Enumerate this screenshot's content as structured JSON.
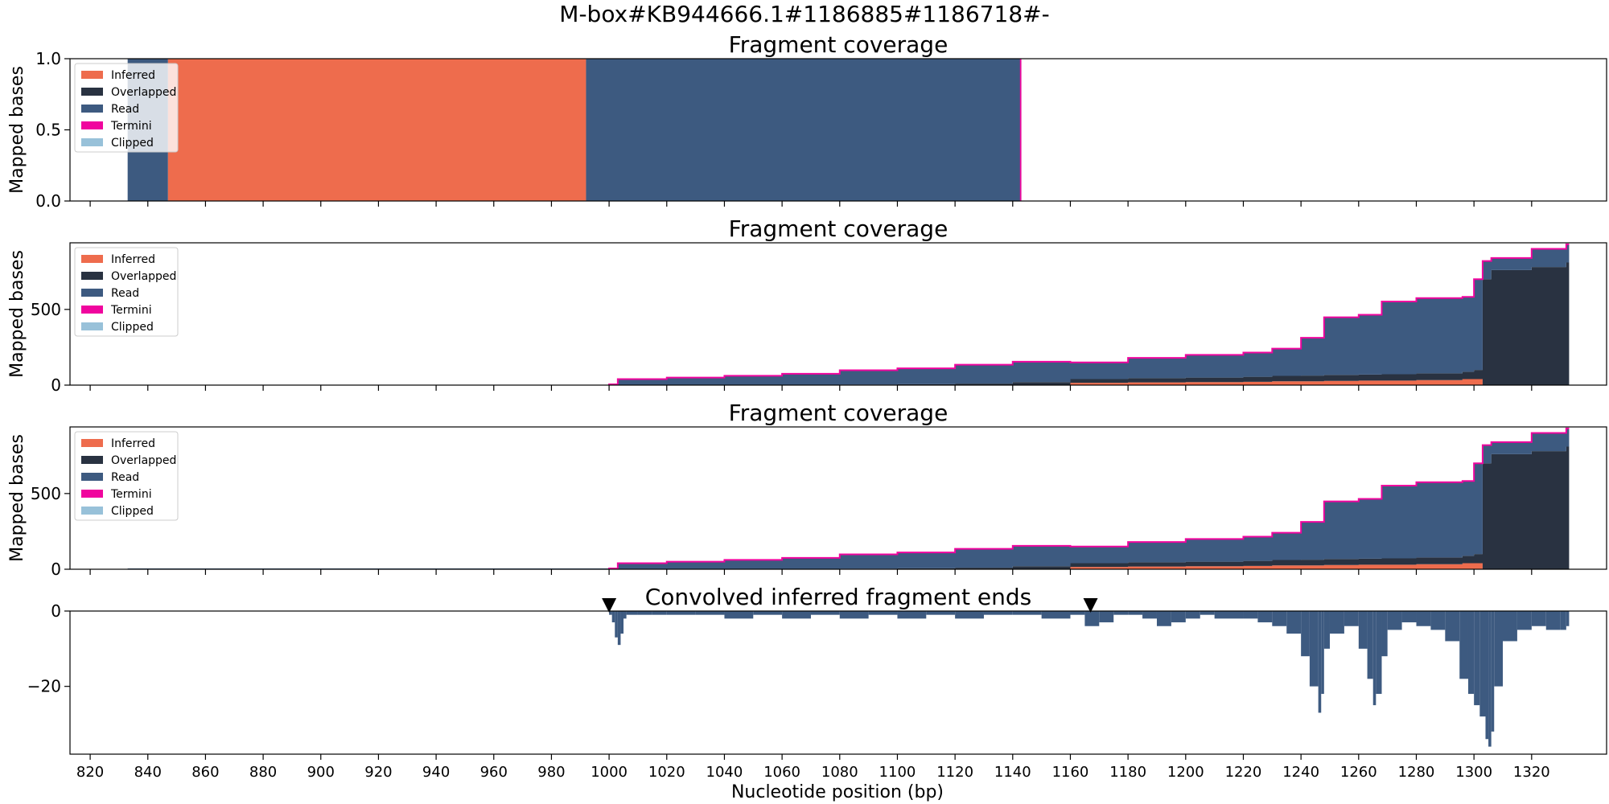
{
  "figure": {
    "suptitle": "M-box#KB944666.1#1186885#1186718#-"
  },
  "colors": {
    "inferred": "#ee6c4d",
    "overlapped": "#293241",
    "read": "#3d5a80",
    "termini": "#f0059e",
    "clipped": "#98c1d9"
  },
  "legend_entries": [
    "Inferred",
    "Overlapped",
    "Read",
    "Termini",
    "Clipped"
  ],
  "x_axis": {
    "label": "Nucleotide position (bp)",
    "range": [
      813,
      1346
    ],
    "ticks": [
      820,
      840,
      860,
      880,
      900,
      920,
      940,
      960,
      980,
      1000,
      1020,
      1040,
      1060,
      1080,
      1100,
      1120,
      1140,
      1160,
      1180,
      1200,
      1220,
      1240,
      1260,
      1280,
      1300,
      1320
    ]
  },
  "chart_data": [
    {
      "type": "area",
      "title": "Fragment coverage",
      "ylabel": "Mapped bases",
      "ylim": [
        0,
        1.0
      ],
      "yticks": [
        0.0,
        0.5,
        1.0
      ],
      "ytick_labels": [
        "0.0",
        "0.5",
        "1.0"
      ],
      "legend": "top-left",
      "segments": [
        {
          "series": "Read",
          "x0": 833,
          "x1": 847,
          "y": 1.0
        },
        {
          "series": "Inferred",
          "x0": 847,
          "x1": 992,
          "y": 1.0
        },
        {
          "series": "Read",
          "x0": 992,
          "x1": 1143,
          "y": 1.0
        },
        {
          "series": "Termini",
          "x0": 1142.5,
          "x1": 1143,
          "y": 1.0
        }
      ]
    },
    {
      "type": "area",
      "title": "Fragment coverage",
      "ylabel": "Mapped bases",
      "ylim": [
        0,
        940
      ],
      "yticks": [
        0,
        500
      ],
      "ytick_labels": [
        "0",
        "500"
      ],
      "legend": "top-left",
      "x": [
        1000,
        1003,
        1020,
        1040,
        1060,
        1080,
        1100,
        1120,
        1140,
        1160,
        1180,
        1200,
        1220,
        1230,
        1240,
        1248,
        1260,
        1268,
        1280,
        1296,
        1300,
        1303,
        1306,
        1320,
        1332
      ],
      "series": [
        {
          "name": "Inferred",
          "values": [
            0,
            0,
            0,
            0,
            0,
            0,
            0,
            0,
            0,
            15,
            18,
            20,
            22,
            25,
            25,
            28,
            30,
            30,
            33,
            40,
            40,
            0,
            0,
            0,
            0
          ]
        },
        {
          "name": "Overlapped",
          "values": [
            0,
            0,
            0,
            0,
            0,
            3,
            6,
            10,
            20,
            25,
            28,
            30,
            33,
            36,
            38,
            40,
            40,
            42,
            45,
            48,
            60,
            700,
            760,
            780,
            810
          ]
        },
        {
          "name": "Read",
          "values": [
            5,
            40,
            50,
            62,
            75,
            95,
            105,
            125,
            135,
            110,
            134,
            150,
            160,
            180,
            250,
            380,
            395,
            480,
            497,
            495,
            600,
            120,
            80,
            120,
            120
          ]
        }
      ],
      "termini_outline": true,
      "termini_start": 1000
    },
    {
      "type": "area",
      "title": "Fragment coverage",
      "ylabel": "Mapped bases",
      "ylim": [
        0,
        940
      ],
      "yticks": [
        0,
        500
      ],
      "ytick_labels": [
        "0",
        "500"
      ],
      "legend": "top-left",
      "x": [
        833,
        840,
        900,
        960,
        999,
        1000,
        1003,
        1020,
        1040,
        1060,
        1080,
        1100,
        1120,
        1140,
        1160,
        1180,
        1200,
        1220,
        1230,
        1240,
        1248,
        1260,
        1268,
        1280,
        1296,
        1300,
        1303,
        1306,
        1320,
        1332
      ],
      "series": [
        {
          "name": "Inferred",
          "values": [
            0,
            0,
            0,
            0,
            0,
            0,
            0,
            0,
            0,
            0,
            0,
            0,
            0,
            0,
            15,
            18,
            20,
            22,
            25,
            25,
            28,
            30,
            30,
            33,
            40,
            40,
            0,
            0,
            0,
            0
          ]
        },
        {
          "name": "Overlapped",
          "values": [
            0,
            0,
            0,
            0,
            0,
            0,
            0,
            0,
            0,
            0,
            3,
            6,
            10,
            20,
            25,
            28,
            30,
            33,
            36,
            38,
            40,
            40,
            42,
            45,
            48,
            60,
            700,
            760,
            780,
            810
          ]
        },
        {
          "name": "Read",
          "values": [
            5,
            5,
            5,
            5,
            5,
            5,
            40,
            50,
            62,
            75,
            95,
            105,
            125,
            135,
            110,
            134,
            150,
            160,
            180,
            250,
            380,
            395,
            480,
            497,
            495,
            600,
            120,
            80,
            120,
            120
          ]
        }
      ],
      "termini_outline": true,
      "termini_start": 1000
    },
    {
      "type": "bar",
      "title": "Convolved inferred fragment ends",
      "ylabel": "",
      "ylim": [
        -38,
        0
      ],
      "yticks": [
        0,
        -20
      ],
      "ytick_labels": [
        "0",
        "−20"
      ],
      "markers": [
        1000,
        1167
      ],
      "x": [
        1000,
        1001,
        1002,
        1003,
        1004,
        1005,
        1006,
        1010,
        1015,
        1020,
        1030,
        1040,
        1050,
        1060,
        1070,
        1080,
        1090,
        1100,
        1110,
        1120,
        1130,
        1140,
        1150,
        1160,
        1165,
        1170,
        1175,
        1180,
        1185,
        1190,
        1195,
        1200,
        1205,
        1210,
        1220,
        1225,
        1230,
        1235,
        1240,
        1243,
        1246,
        1247,
        1248,
        1250,
        1255,
        1260,
        1263,
        1265,
        1266,
        1268,
        1270,
        1275,
        1280,
        1285,
        1290,
        1295,
        1298,
        1300,
        1302,
        1304,
        1305,
        1306,
        1307,
        1310,
        1315,
        1320,
        1325,
        1330,
        1332
      ],
      "values": [
        -1,
        -3,
        -7,
        -9,
        -6,
        -2,
        -1,
        -1,
        -1,
        -1,
        -1,
        -2,
        -1,
        -2,
        -1,
        -2,
        -1,
        -2,
        -1,
        -2,
        -1,
        -1,
        -2,
        -1,
        -4,
        -3,
        -1,
        -1,
        -2,
        -4,
        -3,
        -2,
        -1,
        -2,
        -2,
        -3,
        -4,
        -6,
        -12,
        -20,
        -27,
        -22,
        -10,
        -6,
        -4,
        -10,
        -18,
        -25,
        -22,
        -12,
        -5,
        -3,
        -4,
        -5,
        -8,
        -18,
        -22,
        -25,
        -28,
        -34,
        -36,
        -32,
        -20,
        -8,
        -5,
        -4,
        -5,
        -5,
        -4
      ]
    }
  ]
}
